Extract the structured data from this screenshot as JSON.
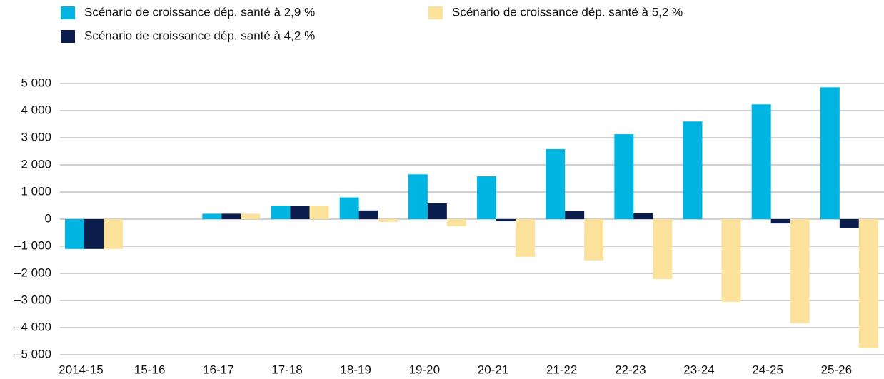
{
  "chart_data": {
    "type": "bar",
    "categories": [
      "2014-15",
      "15-16",
      "16-17",
      "17-18",
      "18-19",
      "19-20",
      "20-21",
      "21-22",
      "22-23",
      "23-24",
      "24-25",
      "25-26"
    ],
    "series": [
      {
        "name": "Scénario de croissance dép. santé à 2,9 %",
        "color": "#00b5e2",
        "values": [
          -1100,
          0,
          200,
          500,
          800,
          1650,
          1580,
          2580,
          3130,
          3600,
          4230,
          4860
        ]
      },
      {
        "name": "Scénario de croissance dép. santé à 4,2 %",
        "color": "#0b1d4d",
        "values": [
          -1100,
          0,
          200,
          500,
          320,
          580,
          -80,
          290,
          210,
          0,
          -160,
          -340
        ]
      },
      {
        "name": "Scénario de croissance dép. santé à 5,2 %",
        "color": "#fde29c",
        "values": [
          -1100,
          0,
          200,
          500,
          -100,
          -260,
          -1390,
          -1520,
          -2210,
          -3050,
          -3840,
          -4760
        ]
      }
    ],
    "ylim": [
      -5000,
      5000
    ],
    "yticks": [
      {
        "value": 5000,
        "label": "5 000"
      },
      {
        "value": 4000,
        "label": "4 000"
      },
      {
        "value": 3000,
        "label": "3 000"
      },
      {
        "value": 2000,
        "label": "2 000"
      },
      {
        "value": 1000,
        "label": "1 000"
      },
      0,
      {
        "value": -1000,
        "label": "–1 000"
      },
      {
        "value": -2000,
        "label": "–2 000"
      },
      {
        "value": -3000,
        "label": "–3 000"
      },
      {
        "value": -4000,
        "label": "–4 000"
      },
      {
        "value": -5000,
        "label": "–5 000"
      }
    ],
    "grid": true
  }
}
